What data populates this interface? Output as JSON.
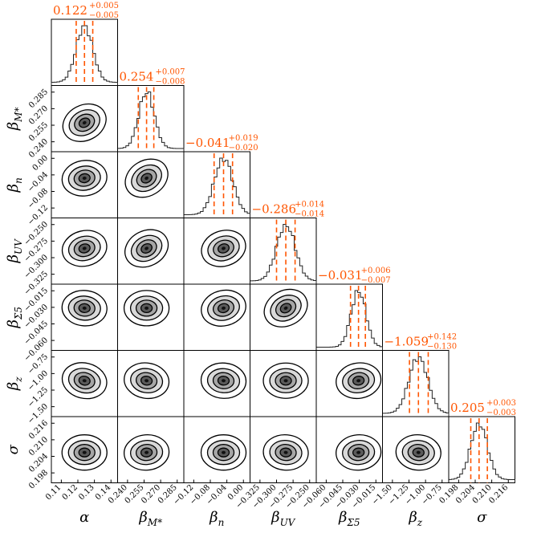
{
  "chart_data": {
    "type": "corner",
    "parameters": [
      {
        "name": "α",
        "sub": "",
        "ticks": [
          "0.11",
          "0.12",
          "0.13",
          "0.14"
        ],
        "range": [
          0.102,
          0.142
        ],
        "median": 0.122,
        "plus": 0.005,
        "minus": 0.005,
        "summary": "0.122",
        "plus_text": "+0.005",
        "minus_text": "−0.005"
      },
      {
        "name": "β",
        "sub": "M*",
        "ticks": [
          "0.240",
          "0.255",
          "0.270",
          "0.285"
        ],
        "range": [
          0.226,
          0.29
        ],
        "median": 0.254,
        "plus": 0.007,
        "minus": 0.008,
        "summary": "0.254",
        "plus_text": "+0.007",
        "minus_text": "−0.008"
      },
      {
        "name": "β",
        "sub": "n",
        "ticks": [
          "−0.12",
          "−0.08",
          "−0.04",
          "0.00"
        ],
        "range": [
          -0.125,
          0.015
        ],
        "median": -0.041,
        "plus": 0.019,
        "minus": 0.02,
        "summary": "−0.041",
        "plus_text": "+0.019",
        "minus_text": "−0.020"
      },
      {
        "name": "β",
        "sub": "UV",
        "ticks": [
          "−0.325",
          "−0.300",
          "−0.275",
          "−0.250"
        ],
        "range": [
          -0.34,
          -0.24
        ],
        "median": -0.286,
        "plus": 0.014,
        "minus": 0.014,
        "summary": "−0.286",
        "plus_text": "+0.014",
        "minus_text": "−0.014"
      },
      {
        "name": "β",
        "sub": "Σ5",
        "ticks": [
          "−0.060",
          "−0.045",
          "−0.030",
          "−0.015"
        ],
        "range": [
          -0.068,
          -0.01
        ],
        "median": -0.031,
        "plus": 0.006,
        "minus": 0.007,
        "summary": "−0.031",
        "plus_text": "+0.006",
        "minus_text": "−0.007"
      },
      {
        "name": "β",
        "sub": "z",
        "ticks": [
          "−1.50",
          "−1.25",
          "−1.00",
          "−0.75"
        ],
        "range": [
          -1.58,
          -0.62
        ],
        "median": -1.059,
        "plus": 0.142,
        "minus": 0.13,
        "summary": "−1.059",
        "plus_text": "+0.142",
        "minus_text": "−0.130"
      },
      {
        "name": "σ",
        "sub": "",
        "ticks": [
          "0.198",
          "0.204",
          "0.210",
          "0.216"
        ],
        "range": [
          0.194,
          0.218
        ],
        "median": 0.205,
        "plus": 0.003,
        "minus": 0.003,
        "summary": "0.205",
        "plus_text": "+0.003",
        "minus_text": "−0.003"
      }
    ],
    "quantile_color": "#ff5500",
    "contour_colors": [
      "#ffffff",
      "#d9d9d9",
      "#a6a6a6",
      "#5a5a5a",
      "#111111"
    ]
  }
}
